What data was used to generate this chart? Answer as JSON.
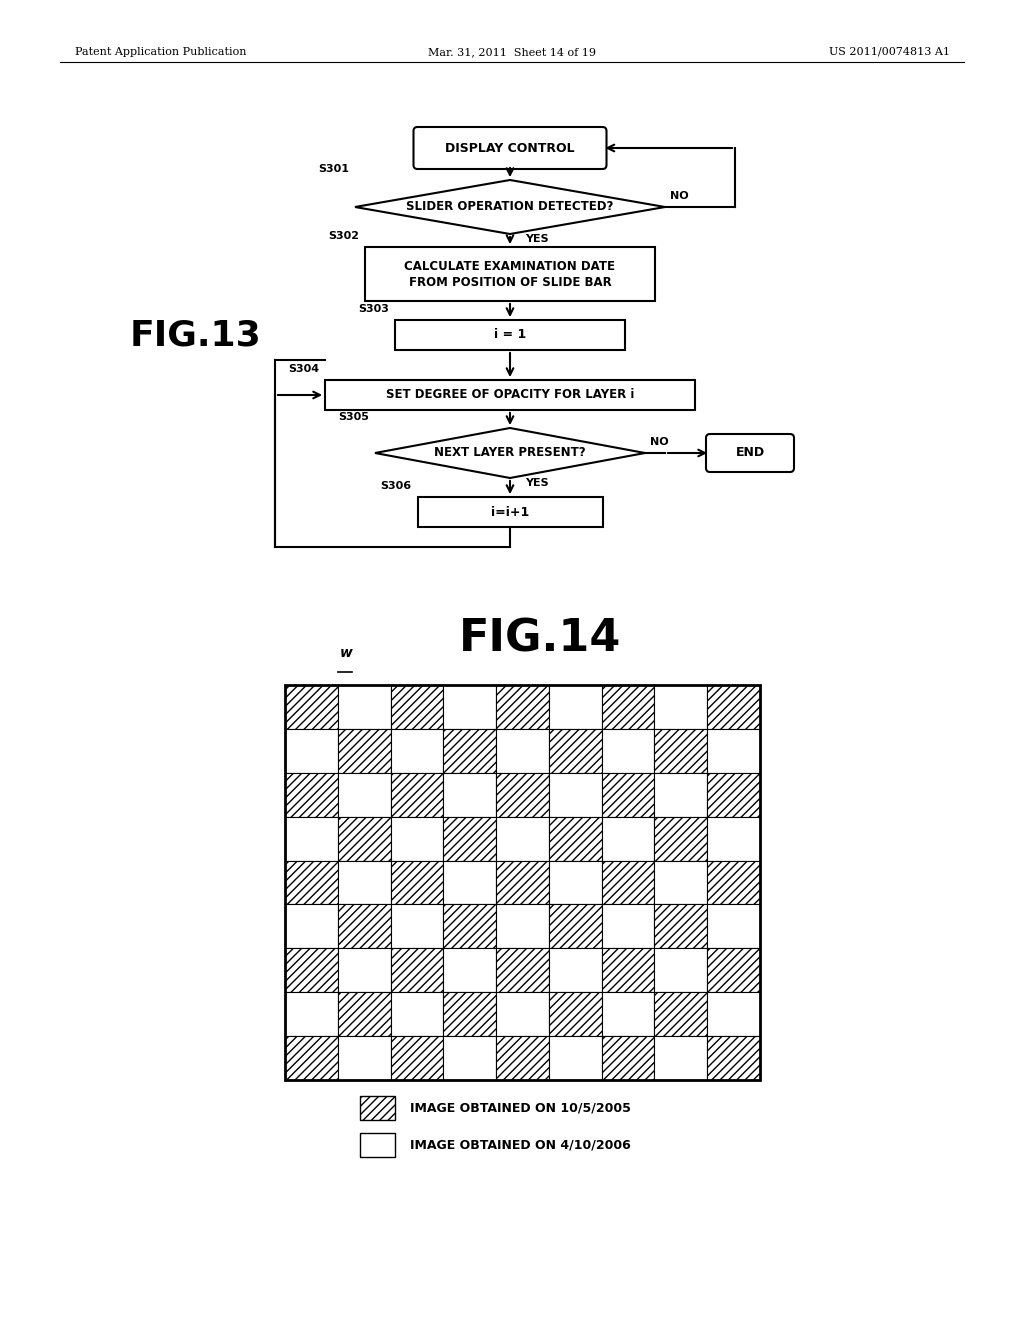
{
  "background_color": "#ffffff",
  "header_left": "Patent Application Publication",
  "header_center": "Mar. 31, 2011  Sheet 14 of 19",
  "header_right": "US 2011/0074813 A1",
  "fig13_label": "FIG.13",
  "fig14_label": "FIG.14",
  "w_label": "w",
  "grid_rows": 9,
  "grid_cols": 9,
  "legend_hatched_label": "IMAGE OBTAINED ON 10/5/2005",
  "legend_white_label": "IMAGE OBTAINED ON 4/10/2006"
}
